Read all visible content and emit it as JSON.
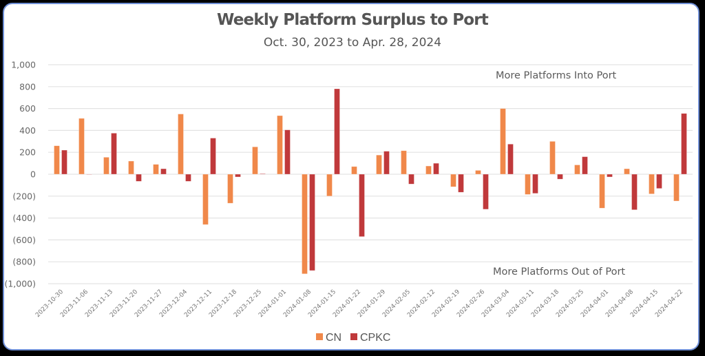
{
  "chart_data": {
    "type": "bar",
    "title": "Weekly Platform Surplus to Port",
    "subtitle": "Oct. 30, 2023 to Apr. 28, 2024",
    "xlabel": "",
    "ylabel": "",
    "ylim": [
      -1000,
      1000
    ],
    "yticks": [
      1000,
      800,
      600,
      400,
      200,
      0,
      -200,
      -400,
      -600,
      -800,
      -1000
    ],
    "ytick_labels": [
      "1,000",
      "800",
      "600",
      "400",
      "200",
      "0",
      "(200)",
      "(400)",
      "(600)",
      "(800)",
      "(1,000)"
    ],
    "grid": true,
    "legend_position": "bottom",
    "categories": [
      "2023-10-30",
      "2023-11-06",
      "2023-11-13",
      "2023-11-20",
      "2023-11-27",
      "2023-12-04",
      "2023-12-11",
      "2023-12-18",
      "2023-12-25",
      "2024-01-01",
      "2024-01-08",
      "2024-01-15",
      "2024-01-22",
      "2024-01-29",
      "2024-02-05",
      "2024-02-12",
      "2024-02-19",
      "2024-02-26",
      "2024-03-04",
      "2024-03-11",
      "2024-03-18",
      "2024-03-25",
      "2024-04-01",
      "2024-04-08",
      "2024-04-15",
      "2024-04-22"
    ],
    "series": [
      {
        "name": "CN",
        "color": "#f0884a",
        "values": [
          260,
          510,
          155,
          120,
          90,
          550,
          -460,
          -265,
          250,
          535,
          -910,
          -200,
          70,
          175,
          215,
          75,
          -115,
          35,
          600,
          -185,
          300,
          85,
          -310,
          50,
          -180,
          -245
        ]
      },
      {
        "name": "CPKC",
        "color": "#c0393b",
        "values": [
          220,
          -2,
          375,
          -65,
          50,
          -65,
          330,
          -25,
          5,
          405,
          -880,
          780,
          -570,
          210,
          -90,
          100,
          -165,
          -320,
          275,
          -175,
          -45,
          160,
          -25,
          -325,
          -130,
          555
        ]
      }
    ],
    "annotations": [
      {
        "text": "More Platforms Into Port",
        "position": "top-right"
      },
      {
        "text": "More Platforms Out of Port",
        "position": "bottom-right"
      }
    ]
  }
}
